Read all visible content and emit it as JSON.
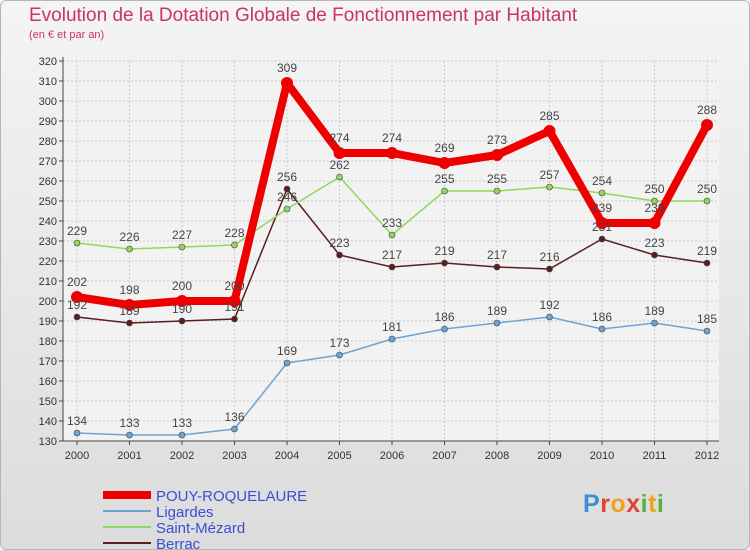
{
  "chart_data": {
    "type": "line",
    "title": "Evolution de la Dotation Globale de Fonctionnement par Habitant",
    "subtitle": "(en € et par an)",
    "xlabel": "",
    "ylabel": "",
    "ylim": [
      130,
      320
    ],
    "y_ticks": [
      130,
      140,
      150,
      160,
      170,
      180,
      190,
      200,
      210,
      220,
      230,
      240,
      250,
      260,
      270,
      280,
      290,
      300,
      310,
      320
    ],
    "x": [
      "2000",
      "2001",
      "2002",
      "2003",
      "2004",
      "2005",
      "2006",
      "2007",
      "2008",
      "2009",
      "2010",
      "2011",
      "2012"
    ],
    "grid": true,
    "legend_position": "bottom-left",
    "series": [
      {
        "name": "Berrac",
        "color": "#5a1e1e",
        "values": [
          192,
          189,
          190,
          191,
          256,
          223,
          217,
          219,
          217,
          216,
          231,
          223,
          219
        ]
      },
      {
        "name": "Saint-Mézard",
        "color": "#8fd85a",
        "values": [
          229,
          226,
          227,
          228,
          246,
          262,
          233,
          255,
          255,
          257,
          254,
          250,
          250
        ]
      },
      {
        "name": "Ligardes",
        "color": "#6fa3d3",
        "values": [
          134,
          133,
          133,
          136,
          169,
          173,
          181,
          186,
          189,
          192,
          186,
          189,
          185
        ]
      },
      {
        "name": "POUY-ROQUELAURE",
        "color": "#ee0000",
        "values": [
          202,
          198,
          200,
          200,
          309,
          274,
          274,
          269,
          273,
          285,
          239,
          239,
          288
        ]
      }
    ],
    "legend_order": [
      "POUY-ROQUELAURE",
      "Ligardes",
      "Saint-Mézard",
      "Berrac"
    ]
  },
  "logo": {
    "letters": [
      "P",
      "r",
      "o",
      "x",
      "i",
      "t",
      "i"
    ]
  }
}
